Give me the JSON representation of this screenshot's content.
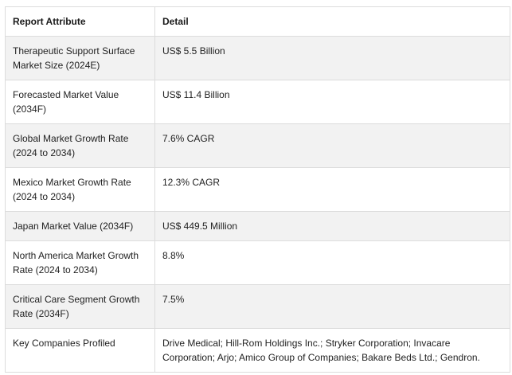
{
  "table": {
    "headers": {
      "attribute": "Report Attribute",
      "detail": "Detail"
    },
    "rows": [
      {
        "attribute": "Therapeutic Support Surface Market Size (2024E)",
        "detail": "US$ 5.5 Billion"
      },
      {
        "attribute": "Forecasted Market Value (2034F)",
        "detail": "US$ 11.4 Billion"
      },
      {
        "attribute": "Global Market Growth Rate (2024 to 2034)",
        "detail": "7.6% CAGR"
      },
      {
        "attribute": "Mexico Market Growth Rate (2024 to 2034)",
        "detail": "12.3% CAGR"
      },
      {
        "attribute": "Japan Market Value (2034F)",
        "detail": "US$ 449.5 Million"
      },
      {
        "attribute": "North America Market Growth Rate (2024 to 2034)",
        "detail": "8.8%"
      },
      {
        "attribute": "Critical Care Segment Growth Rate (2034F)",
        "detail": "7.5%"
      },
      {
        "attribute": "Key Companies Profiled",
        "detail": "Drive Medical; Hill-Rom Holdings Inc.; Stryker Corporation; Invacare Corporation; Arjo; Amico Group of Companies; Bakare Beds Ltd.; Gendron."
      }
    ]
  }
}
